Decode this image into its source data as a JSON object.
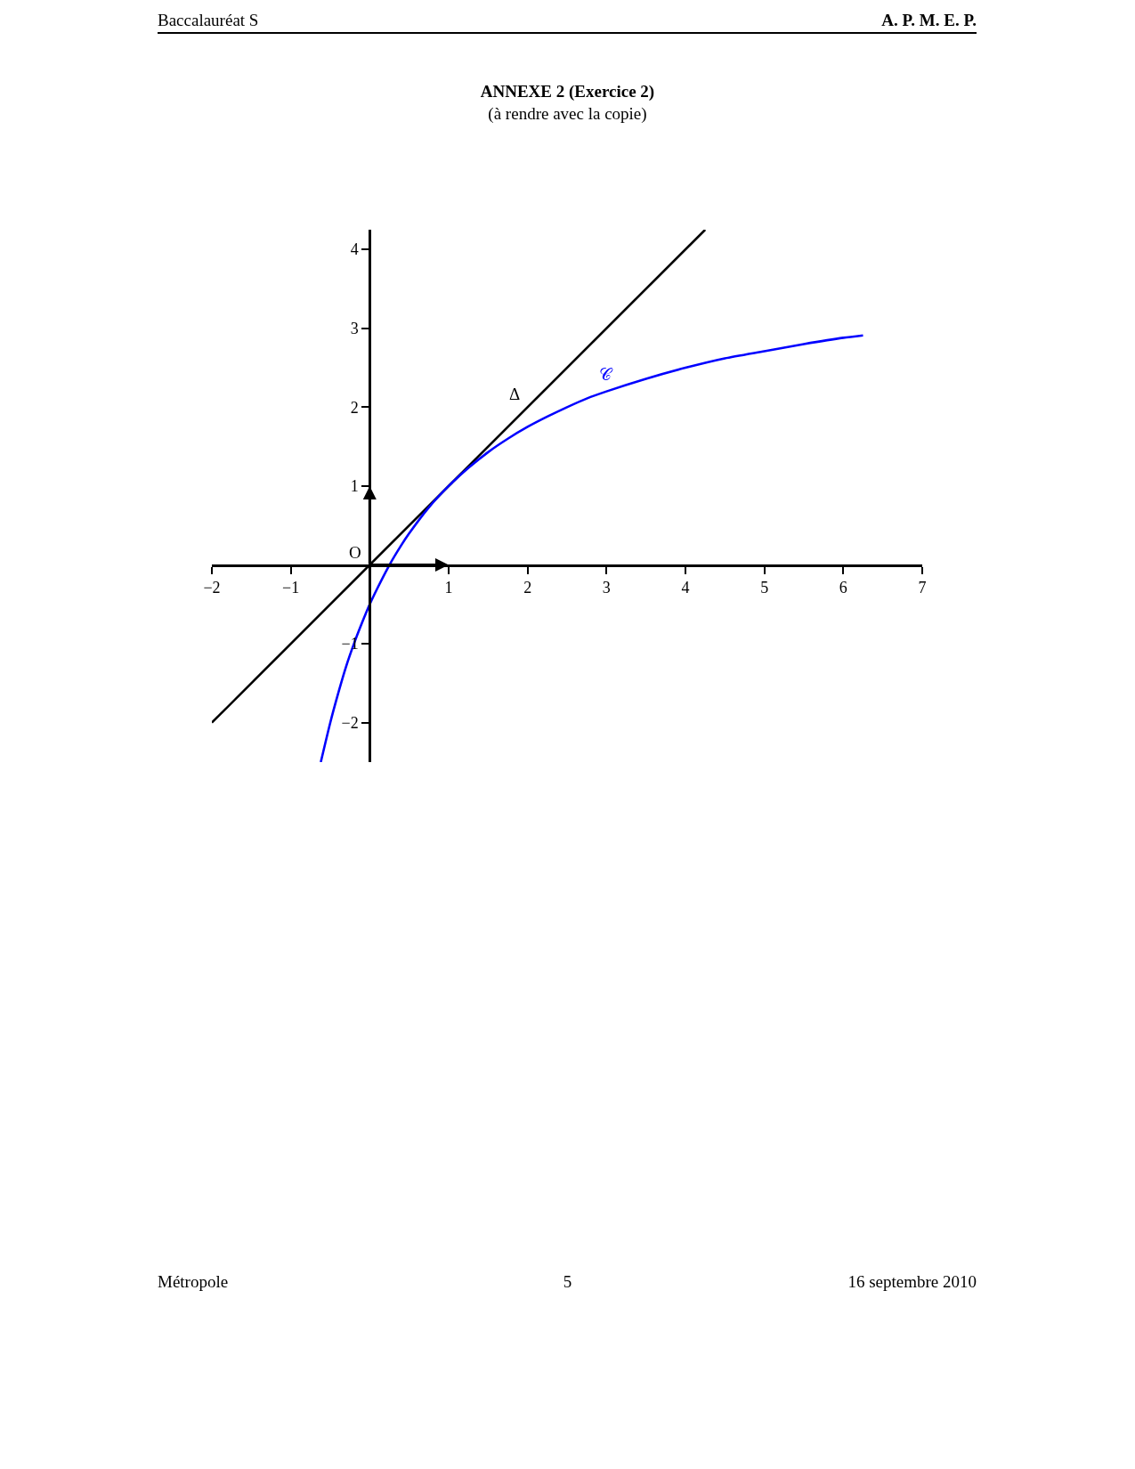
{
  "chart_data": {
    "type": "line",
    "title": "ANNEXE 2 (Exercice 2)",
    "subtitle": "(à rendre avec la copie)",
    "annotations": [
      "Baccalauréat S",
      "A. P. M. E. P.",
      "Métropole",
      "5",
      "16 septembre 2010",
      {
        "text": "O",
        "x": 0,
        "y": 0
      }
    ],
    "series": [
      {
        "name": "Δ",
        "color": "#000000",
        "x": [
          -2,
          4.25
        ],
        "values": [
          -2,
          4.25
        ]
      },
      {
        "name": "𝒞",
        "color": "#0000ff",
        "x": [
          -0.62,
          -0.5,
          -0.4,
          -0.3,
          -0.2,
          -0.1,
          0,
          0.1,
          0.25,
          0.4,
          0.5,
          0.75,
          1,
          1.25,
          1.5,
          1.75,
          2,
          2.25,
          2.5,
          2.75,
          3,
          3.5,
          4,
          4.5,
          5,
          5.5,
          6,
          6.25
        ],
        "values": [
          -2.5,
          -2,
          -1.63,
          -1.29,
          -1,
          -0.74,
          -0.5,
          -0.29,
          0,
          0.25,
          0.4,
          0.73,
          1,
          1.23,
          1.43,
          1.6,
          1.75,
          1.88,
          2,
          2.11,
          2.2,
          2.36,
          2.5,
          2.62,
          2.71,
          2.8,
          2.88,
          2.91
        ]
      }
    ],
    "xlim": [
      -2,
      7
    ],
    "ylim": [
      -2.5,
      4.25
    ],
    "xticks": [
      -2,
      -1,
      1,
      2,
      3,
      4,
      5,
      6,
      7
    ],
    "yticks": [
      -2,
      -1,
      1,
      2,
      3,
      4
    ]
  }
}
